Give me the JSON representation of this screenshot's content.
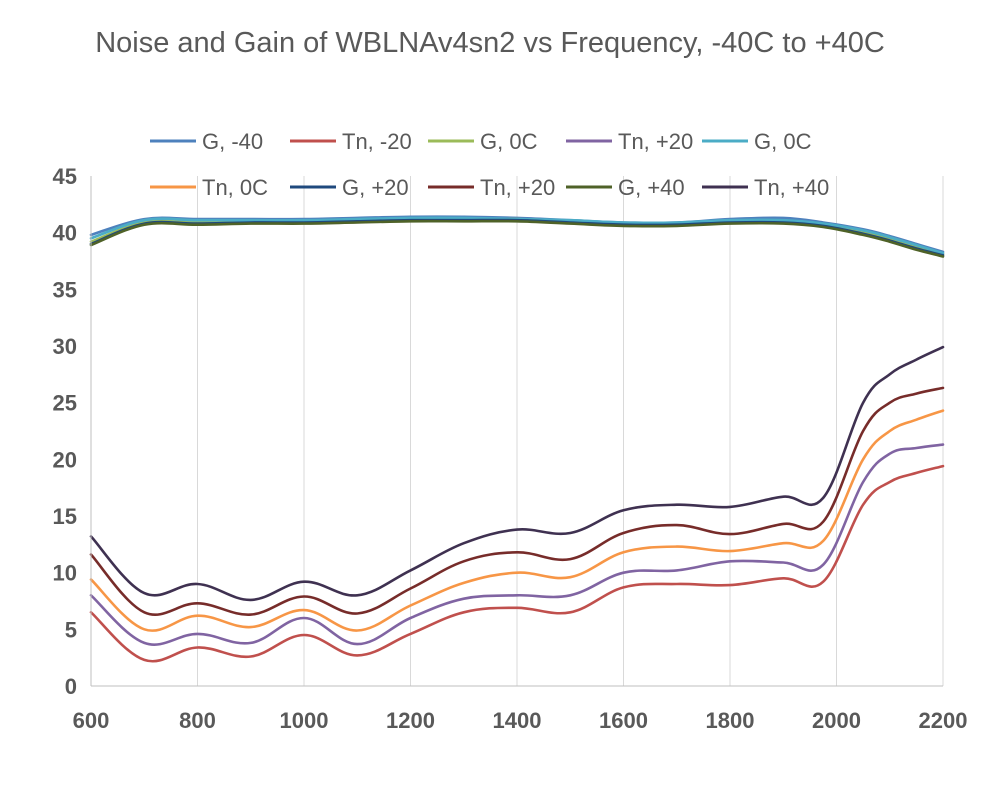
{
  "chart_data": {
    "type": "line",
    "title": "Noise and Gain of WBLNAv4sn2 vs Frequency, -40C to +40C",
    "xlabel": "",
    "ylabel": "",
    "xlim": [
      600,
      2200
    ],
    "ylim": [
      0,
      45
    ],
    "x_ticks": [
      600,
      800,
      1000,
      1200,
      1400,
      1600,
      1800,
      2000,
      2200
    ],
    "y_ticks": [
      0,
      5,
      10,
      15,
      20,
      25,
      30,
      35,
      40,
      45
    ],
    "grid": "vertical",
    "legend_position": "top",
    "x": [
      600,
      700,
      800,
      900,
      1000,
      1100,
      1200,
      1300,
      1400,
      1500,
      1600,
      1700,
      1800,
      1900,
      1975,
      2050,
      2100,
      2150,
      2200
    ],
    "series": [
      {
        "name": "G, -40",
        "color": "#4e81bd",
        "values": [
          39.8,
          41.2,
          41.2,
          41.2,
          41.2,
          41.3,
          41.4,
          41.4,
          41.3,
          41.1,
          40.9,
          40.9,
          41.2,
          41.3,
          40.9,
          40.3,
          39.7,
          39.0,
          38.3
        ]
      },
      {
        "name": "Tn, -20",
        "color": "#c0504d",
        "values": [
          6.5,
          2.3,
          3.4,
          2.6,
          4.5,
          2.7,
          4.6,
          6.5,
          6.9,
          6.5,
          8.7,
          9.0,
          8.9,
          9.5,
          9.2,
          16.0,
          18.0,
          18.8,
          19.4
        ]
      },
      {
        "name": "G, 0C",
        "color": "#9bbb59",
        "values": [
          39.2,
          40.9,
          40.9,
          41.0,
          41.0,
          41.1,
          41.2,
          41.2,
          41.2,
          41.0,
          40.8,
          40.8,
          41.0,
          41.0,
          40.7,
          40.0,
          39.5,
          38.7,
          38.1
        ]
      },
      {
        "name": "Tn, +20",
        "color": "#8064a2",
        "values": [
          8.0,
          3.8,
          4.6,
          3.8,
          6.0,
          3.7,
          6.0,
          7.7,
          8.0,
          8.0,
          10.0,
          10.2,
          11.0,
          10.9,
          10.7,
          18.0,
          20.5,
          21.0,
          21.3
        ]
      },
      {
        "name": "G, 0C",
        "color": "#4bacc6",
        "values": [
          39.5,
          41.1,
          41.1,
          41.1,
          41.1,
          41.2,
          41.3,
          41.3,
          41.2,
          41.1,
          40.9,
          40.9,
          41.1,
          41.1,
          40.8,
          40.2,
          39.6,
          38.9,
          38.2
        ]
      },
      {
        "name": "Tn, 0C",
        "color": "#f79646",
        "values": [
          9.4,
          5.0,
          6.2,
          5.2,
          6.7,
          4.9,
          7.1,
          9.1,
          10.0,
          9.6,
          11.8,
          12.3,
          11.9,
          12.6,
          12.8,
          20.0,
          22.5,
          23.5,
          24.3
        ]
      },
      {
        "name": "G, +20",
        "color": "#1f497d",
        "values": [
          39.0,
          40.8,
          40.8,
          40.9,
          40.9,
          41.0,
          41.1,
          41.1,
          41.1,
          40.9,
          40.7,
          40.7,
          40.9,
          40.9,
          40.6,
          39.9,
          39.3,
          38.6,
          38.0
        ]
      },
      {
        "name": "Tn, +20",
        "color": "#772c2a",
        "values": [
          11.6,
          6.5,
          7.3,
          6.3,
          7.9,
          6.4,
          8.6,
          11.0,
          11.8,
          11.2,
          13.5,
          14.2,
          13.4,
          14.3,
          14.5,
          22.5,
          25.0,
          25.8,
          26.3
        ]
      },
      {
        "name": "G, +40",
        "color": "#4f6228",
        "values": [
          38.9,
          40.7,
          40.7,
          40.8,
          40.8,
          40.9,
          41.0,
          41.0,
          41.0,
          40.8,
          40.6,
          40.6,
          40.8,
          40.8,
          40.5,
          39.8,
          39.2,
          38.5,
          37.9
        ]
      },
      {
        "name": "Tn, +40",
        "color": "#3f3151",
        "values": [
          13.2,
          8.2,
          9.0,
          7.6,
          9.2,
          8.0,
          10.2,
          12.6,
          13.8,
          13.5,
          15.5,
          16.0,
          15.8,
          16.7,
          16.6,
          25.0,
          27.5,
          28.8,
          29.9
        ]
      }
    ]
  }
}
